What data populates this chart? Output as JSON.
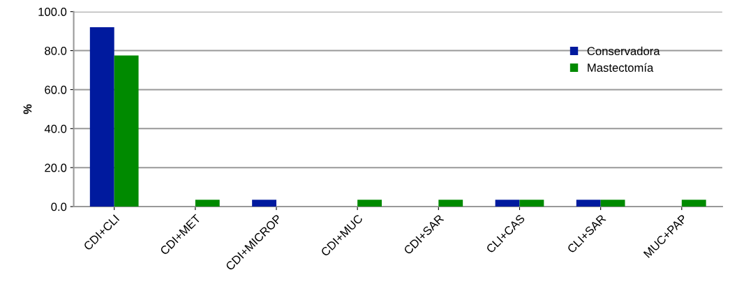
{
  "chart_data": {
    "type": "bar",
    "ylabel": "%",
    "categories": [
      "CDI+CLI",
      "CDI+MET",
      "CDI+MICROP",
      "CDI+MUC",
      "CDI+SAR",
      "CLI+CAS",
      "CLI+SAR",
      "MUC+PAP"
    ],
    "series": [
      {
        "name": "Conservadora",
        "color": "#001a9e",
        "values": [
          92,
          0,
          3.5,
          0,
          0,
          3.5,
          3.5,
          0
        ]
      },
      {
        "name": "Mastectomía",
        "color": "#008a00",
        "values": [
          77.5,
          3.5,
          0,
          3.5,
          3.5,
          3.5,
          3.5,
          3.5
        ]
      }
    ],
    "ylim": [
      0,
      100
    ],
    "yticks": [
      {
        "value": 0,
        "label": "0.0"
      },
      {
        "value": 20,
        "label": "20.0"
      },
      {
        "value": 40,
        "label": "40.0"
      },
      {
        "value": 60,
        "label": "60.0"
      },
      {
        "value": 80,
        "label": "80.0"
      },
      {
        "value": 100,
        "label": "100.0"
      }
    ],
    "grid": "y",
    "legend": "right"
  }
}
